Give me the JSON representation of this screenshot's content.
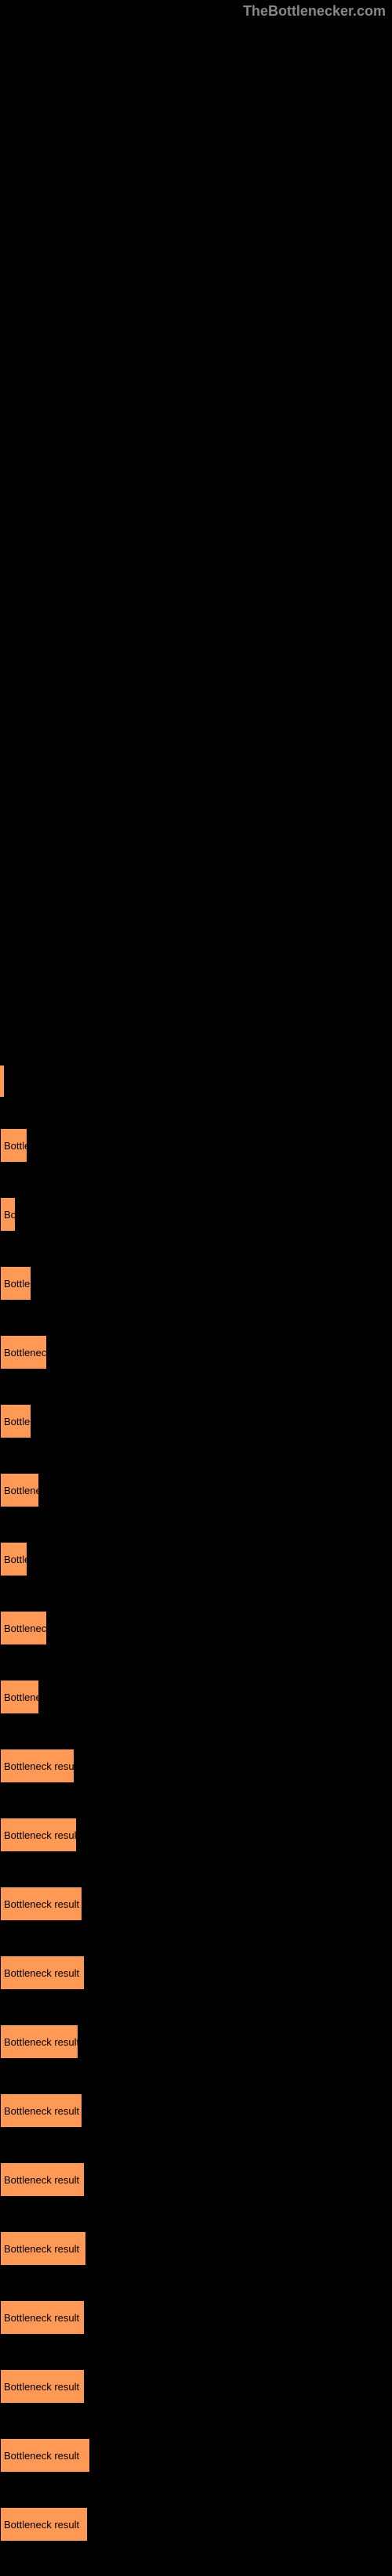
{
  "watermark": "TheBottlenecker.com",
  "bars": [
    {
      "width": 35,
      "label": "Bottleneck"
    },
    {
      "width": 20,
      "label": "Bottleneck"
    },
    {
      "width": 40,
      "label": "Bottleneck"
    },
    {
      "width": 60,
      "label": "Bottleneck"
    },
    {
      "width": 40,
      "label": "Bottleneck"
    },
    {
      "width": 50,
      "label": "Bottleneck"
    },
    {
      "width": 35,
      "label": "Bottleneck"
    },
    {
      "width": 60,
      "label": "Bottleneck"
    },
    {
      "width": 50,
      "label": "Bottleneck"
    },
    {
      "width": 95,
      "label": "Bottleneck result"
    },
    {
      "width": 98,
      "label": "Bottleneck result"
    },
    {
      "width": 105,
      "label": "Bottleneck result"
    },
    {
      "width": 108,
      "label": "Bottleneck result"
    },
    {
      "width": 100,
      "label": "Bottleneck result"
    },
    {
      "width": 105,
      "label": "Bottleneck result"
    },
    {
      "width": 108,
      "label": "Bottleneck result"
    },
    {
      "width": 110,
      "label": "Bottleneck result"
    },
    {
      "width": 108,
      "label": "Bottleneck result"
    },
    {
      "width": 108,
      "label": "Bottleneck result"
    },
    {
      "width": 115,
      "label": "Bottleneck result"
    },
    {
      "width": 112,
      "label": "Bottleneck result"
    }
  ],
  "bar_color": "#ff9955",
  "background_color": "#000000",
  "text_color": "#000000"
}
